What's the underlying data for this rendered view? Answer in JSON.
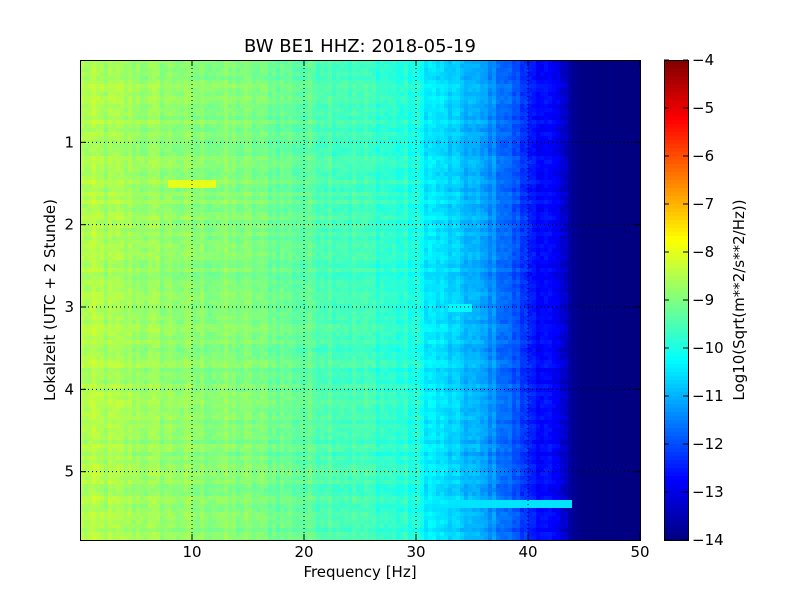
{
  "chart_data": {
    "type": "heatmap",
    "title": "BW BE1 HHZ: 2018-05-19",
    "xlabel": "Frequency [Hz]",
    "ylabel": "Lokalzeit (UTC + 2 Stunde)",
    "xlim": [
      0,
      50
    ],
    "ylim": [
      0,
      5.83
    ],
    "y_inverted": true,
    "x_ticks": [
      10,
      20,
      30,
      40,
      50
    ],
    "x_tick_labels": [
      "10",
      "20",
      "30",
      "40",
      "50"
    ],
    "y_ticks": [
      1,
      2,
      3,
      4,
      5
    ],
    "y_tick_labels": [
      "1",
      "2",
      "3",
      "4",
      "5"
    ],
    "grid": true,
    "colormap": "jet",
    "colorbar": {
      "label": "Log10(Sqrt(m**2/s**2/Hz))",
      "range": [
        -14,
        -4
      ],
      "ticks": [
        -4,
        -5,
        -6,
        -7,
        -8,
        -9,
        -10,
        -11,
        -12,
        -13,
        -14
      ],
      "tick_labels": [
        "−4",
        "−5",
        "−6",
        "−7",
        "−8",
        "−9",
        "−10",
        "−11",
        "−12",
        "−13",
        "−14"
      ]
    },
    "frequency_profile": {
      "frequency_hz": [
        0,
        2,
        5,
        8,
        10,
        12,
        15,
        20,
        25,
        28,
        30,
        31,
        33,
        35,
        37,
        39,
        40,
        42,
        43,
        44,
        45,
        50
      ],
      "log10_amplitude": [
        -8.5,
        -8.6,
        -8.7,
        -8.8,
        -8.9,
        -8.9,
        -9.0,
        -9.3,
        -9.6,
        -9.8,
        -10.0,
        -10.4,
        -10.7,
        -11.0,
        -11.4,
        -12.0,
        -12.4,
        -12.8,
        -13.2,
        -13.8,
        -13.95,
        -14.0
      ]
    },
    "notable_features": [
      {
        "time_h": 1.5,
        "freq_range_hz": [
          8,
          12
        ],
        "log10_amplitude": -8.0
      },
      {
        "time_h": 3.0,
        "freq_range_hz": [
          33,
          35
        ],
        "log10_amplitude": -10.3
      },
      {
        "time_h": 5.38,
        "freq_range_hz": [
          30,
          44
        ],
        "log10_amplitude": -10.5
      }
    ]
  }
}
